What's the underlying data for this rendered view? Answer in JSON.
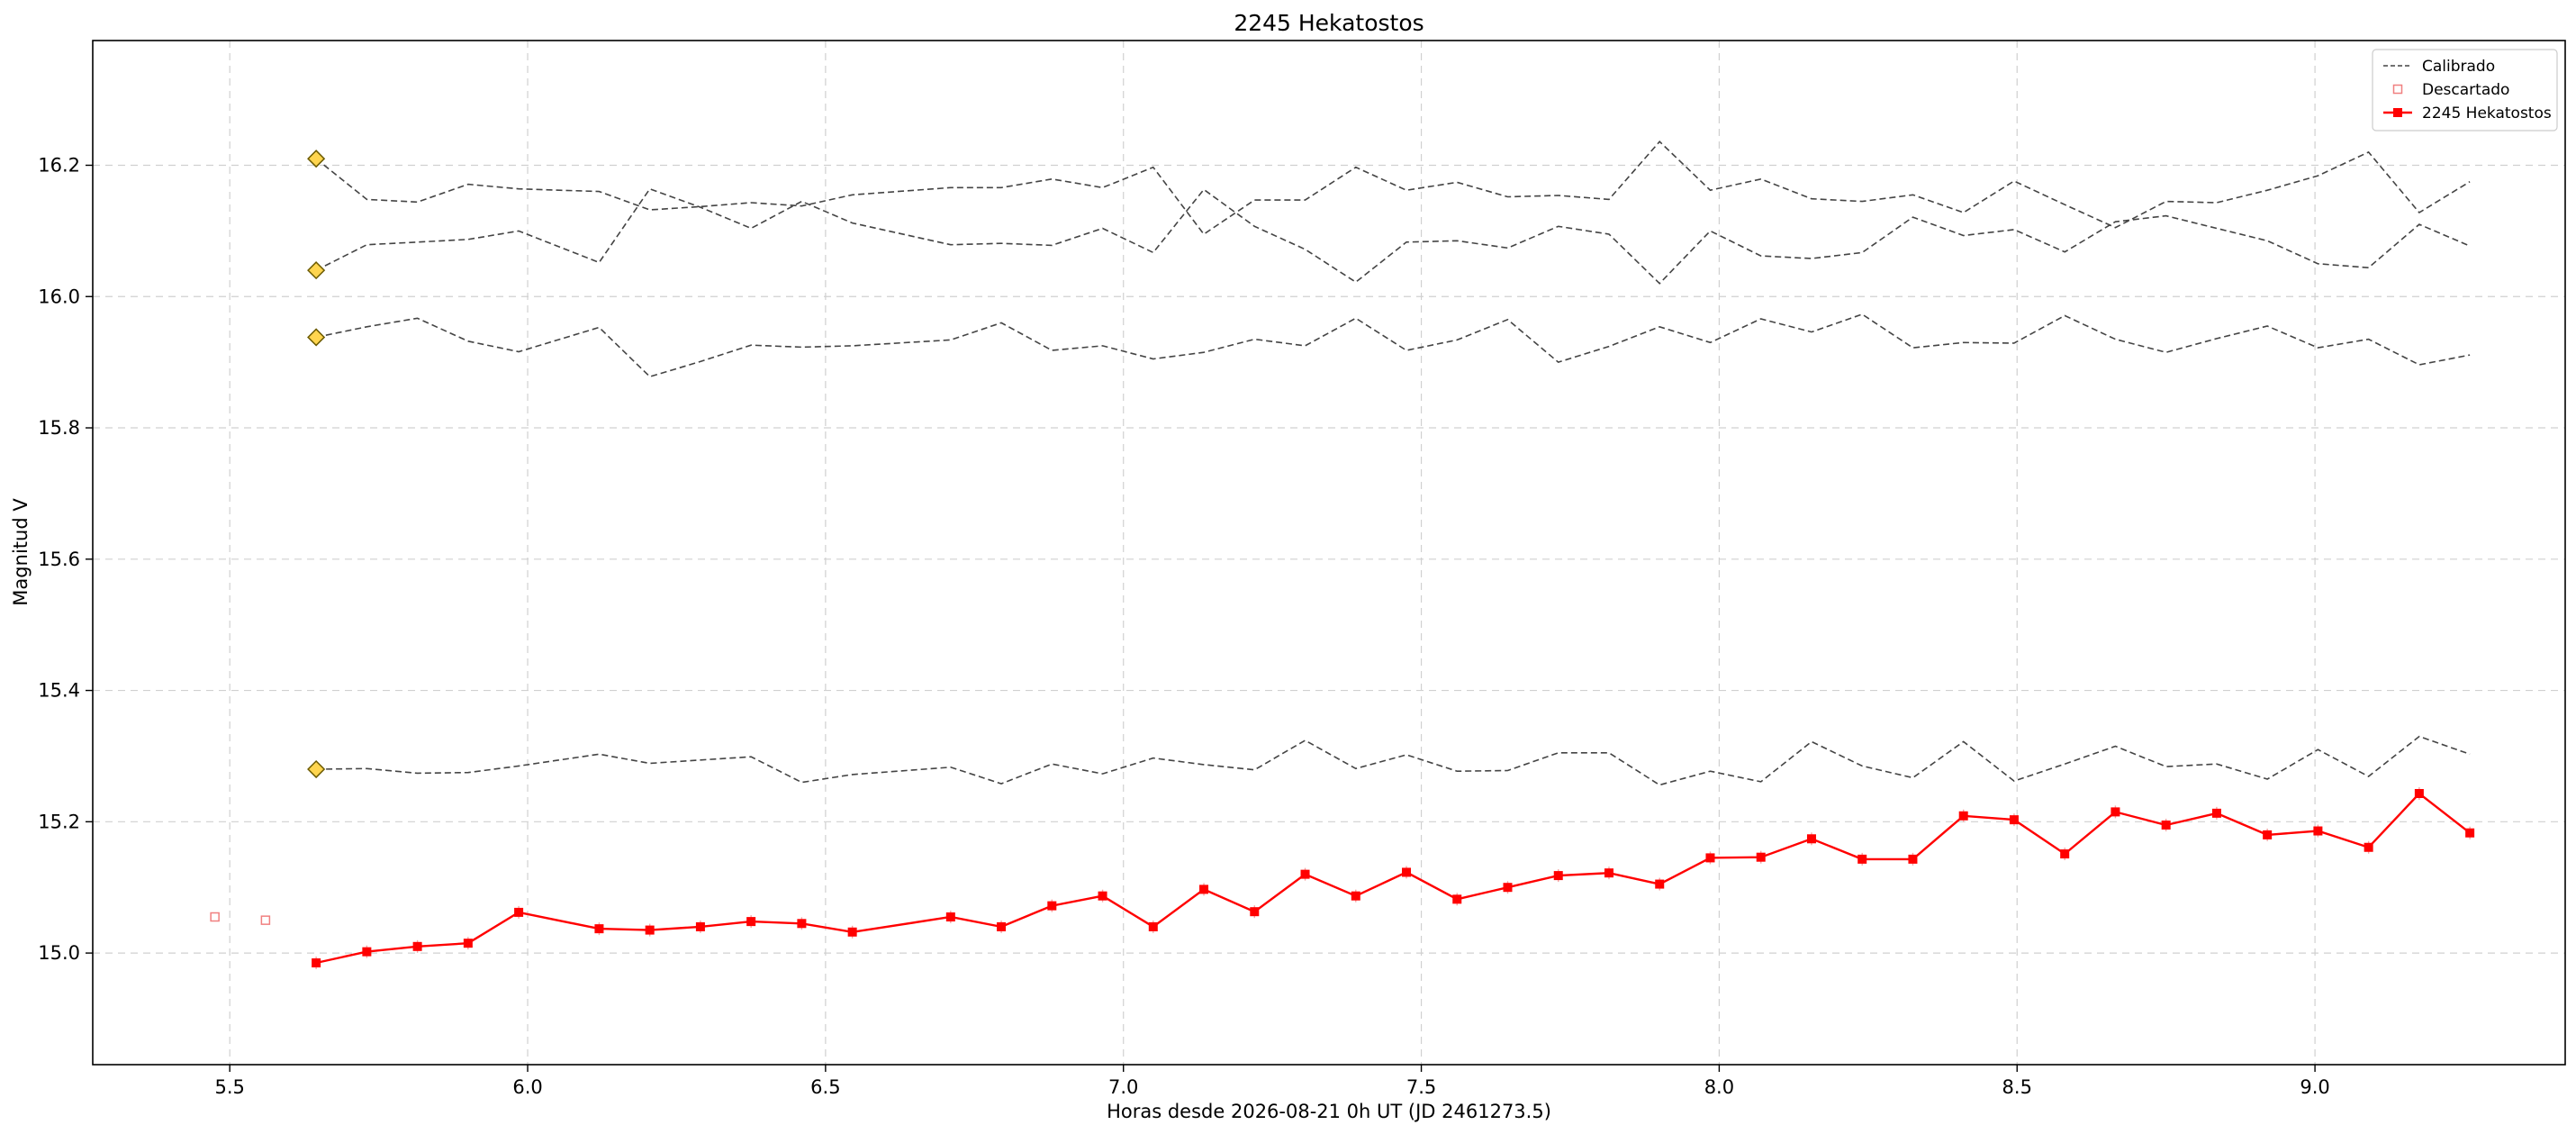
{
  "chart_data": {
    "type": "line",
    "title": "2245 Hekatostos",
    "xlabel": "Horas desde 2026-08-21 0h UT (JD 2461273.5)",
    "ylabel": "Magnitud V",
    "xlim": [
      5.27,
      9.42
    ],
    "ylim": [
      16.39,
      14.83
    ],
    "y_inverted": true,
    "grid": true,
    "legend_position": "top-right",
    "x_ticks": [
      5.5,
      6.0,
      6.5,
      7.0,
      7.5,
      8.0,
      8.5,
      9.0
    ],
    "x_tick_labels": [
      "5.5",
      "6.0",
      "6.5",
      "7.0",
      "7.5",
      "8.0",
      "8.5",
      "9.0"
    ],
    "y_ticks": [
      15.0,
      15.2,
      15.4,
      15.6,
      15.8,
      16.0,
      16.2
    ],
    "y_tick_labels": [
      "15.0",
      "15.2",
      "15.4",
      "15.6",
      "15.8",
      "16.0",
      "16.2"
    ],
    "legend": [
      {
        "label": "Calibrado",
        "style": "dashed",
        "color": "#444444"
      },
      {
        "label": "Descartado",
        "style": "open-square",
        "color": "#f08080"
      },
      {
        "label": "2245 Hekatostos",
        "style": "line-square",
        "color": "#ff0000"
      }
    ],
    "x": [
      5.645,
      5.73,
      5.815,
      5.9,
      5.985,
      6.12,
      6.205,
      6.29,
      6.375,
      6.46,
      6.545,
      6.71,
      6.795,
      6.88,
      6.965,
      7.05,
      7.135,
      7.22,
      7.305,
      7.39,
      7.475,
      7.56,
      7.645,
      7.73,
      7.815,
      7.9,
      7.985,
      8.07,
      8.155,
      8.24,
      8.325,
      8.41,
      8.495,
      8.58,
      8.665,
      8.75,
      8.835,
      8.92,
      9.005,
      9.09,
      9.175,
      9.26
    ],
    "series": [
      {
        "name": "2245 Hekatostos",
        "color": "#ff0000",
        "y": [
          14.985,
          15.002,
          15.01,
          15.015,
          15.062,
          15.037,
          15.035,
          15.04,
          15.048,
          15.045,
          15.032,
          15.055,
          15.04,
          15.072,
          15.087,
          15.04,
          15.097,
          15.063,
          15.12,
          15.087,
          15.123,
          15.082,
          15.1,
          15.118,
          15.122,
          15.105,
          15.145,
          15.146,
          15.174,
          15.143,
          15.143,
          15.209,
          15.203,
          15.151,
          15.215,
          15.195,
          15.213,
          15.18,
          15.186,
          15.161,
          15.243,
          15.183
        ]
      },
      {
        "name": "",
        "color": "#444444",
        "y": [
          15.28,
          15.281,
          15.274,
          15.275,
          15.285,
          15.303,
          15.289,
          15.294,
          15.299,
          15.26,
          15.272,
          15.283,
          15.258,
          15.288,
          15.273,
          15.297,
          15.287,
          15.279,
          15.324,
          15.281,
          15.302,
          15.277,
          15.278,
          15.305,
          15.305,
          15.256,
          15.277,
          15.261,
          15.322,
          15.285,
          15.267,
          15.322,
          15.262,
          15.288,
          15.315,
          15.284,
          15.288,
          15.265,
          15.31,
          15.269,
          15.33,
          15.303
        ]
      },
      {
        "name": "",
        "color": "#444444",
        "y": [
          15.938,
          15.954,
          15.967,
          15.932,
          15.916,
          15.953,
          15.878,
          15.901,
          15.926,
          15.923,
          15.925,
          15.934,
          15.96,
          15.918,
          15.925,
          15.905,
          15.915,
          15.935,
          15.925,
          15.967,
          15.918,
          15.934,
          15.965,
          15.9,
          15.924,
          15.954,
          15.93,
          15.966,
          15.946,
          15.973,
          15.922,
          15.93,
          15.929,
          15.971,
          15.935,
          15.915,
          15.936,
          15.955,
          15.922,
          15.935,
          15.896,
          15.911
        ]
      },
      {
        "name": "",
        "color": "#444444",
        "y": [
          16.04,
          16.079,
          16.083,
          16.087,
          16.1,
          16.052,
          16.164,
          16.136,
          16.104,
          16.145,
          16.112,
          16.079,
          16.081,
          16.078,
          16.104,
          16.067,
          16.163,
          16.107,
          16.072,
          16.022,
          16.083,
          16.085,
          16.074,
          16.107,
          16.095,
          16.02,
          16.1,
          16.062,
          16.058,
          16.067,
          16.121,
          16.093,
          16.102,
          16.068,
          16.114,
          16.123,
          16.104,
          16.085,
          16.05,
          16.044,
          16.11,
          16.077
        ]
      },
      {
        "name": "",
        "color": "#444444",
        "y": [
          16.21,
          16.148,
          16.144,
          16.171,
          16.164,
          16.16,
          16.132,
          16.137,
          16.143,
          16.138,
          16.155,
          16.166,
          16.166,
          16.179,
          16.166,
          16.197,
          16.095,
          16.147,
          16.147,
          16.197,
          16.162,
          16.174,
          16.152,
          16.154,
          16.148,
          16.236,
          16.162,
          16.179,
          16.149,
          16.145,
          16.155,
          16.128,
          16.176,
          16.14,
          16.105,
          16.145,
          16.143,
          16.162,
          16.184,
          16.22,
          16.128,
          16.175
        ]
      }
    ],
    "discarded": [
      {
        "x": 5.475,
        "y": 15.055
      },
      {
        "x": 5.56,
        "y": 15.05
      }
    ],
    "comparison_start_markers": [
      {
        "x": 5.645,
        "y": 15.28
      },
      {
        "x": 5.645,
        "y": 15.938
      },
      {
        "x": 5.645,
        "y": 16.04
      },
      {
        "x": 5.645,
        "y": 16.21
      }
    ],
    "marker_colors": {
      "target": "#ff0000",
      "discarded": "#f08080",
      "comparison_fill": "#ffd54f",
      "comparison_edge": "#6b5a00",
      "calibrated": "#444444",
      "grid": "#d0d0d0"
    }
  }
}
